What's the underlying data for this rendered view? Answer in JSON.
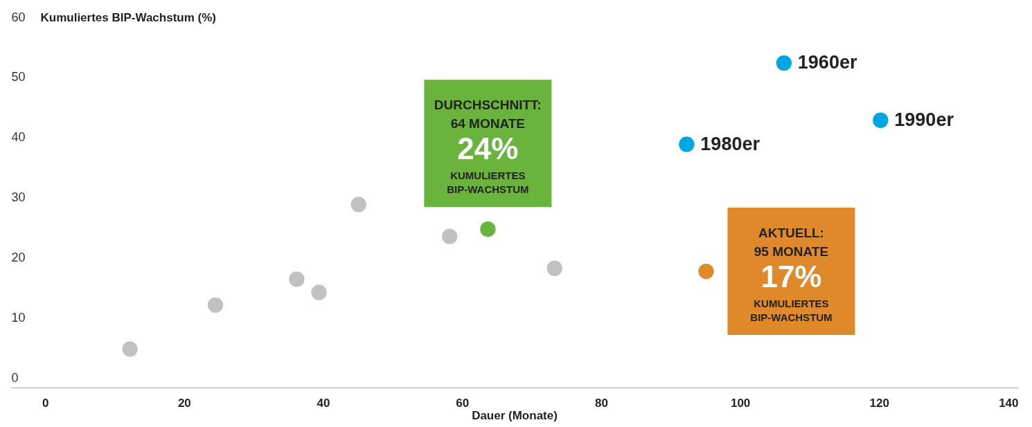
{
  "chart_data": {
    "type": "scatter",
    "xlabel": "Dauer (Monate)",
    "ylabel": "Kumuliertes BIP-Wachstum (%)",
    "xlim": [
      -5,
      140
    ],
    "xticks": [
      0,
      20,
      40,
      60,
      80,
      100,
      120,
      140
    ],
    "ylim": [
      -1.5,
      60
    ],
    "yticks": [
      0,
      10,
      20,
      30,
      40,
      50,
      60
    ],
    "marker": "circle",
    "series": [
      {
        "color": "#c1c1c1",
        "x": [
          12.2,
          24.5,
          36.2,
          39.4,
          45.1,
          58.2,
          73.3
        ],
        "values": [
          4.9,
          12.2,
          16.5,
          14.3,
          28.9,
          23.6,
          18.3
        ]
      },
      {
        "color": "#6ab43e",
        "x": [
          63.7
        ],
        "values": [
          24.8
        ]
      },
      {
        "color": "#e0892a",
        "x": [
          95.1
        ],
        "values": [
          17.8
        ]
      },
      {
        "color": "#00a6e2",
        "x": [
          92.3,
          106.3,
          120.2
        ],
        "values": [
          38.9,
          52.4,
          42.9
        ]
      }
    ],
    "annotations": [
      {
        "text": "DURCHSCHNITT:\n64 MONATE\n24%\nKUMULIERTES\nBIP-WACHSTUM",
        "x": 63.7,
        "y": 24.8
      },
      {
        "text": "AKTUELL:\n95 MONATE\n17%\nKUMULIERTES\nBIP-WACHSTUM",
        "x": 95.1,
        "y": 17.8
      },
      {
        "text": "1980er",
        "x": 92.3,
        "y": 38.9
      },
      {
        "text": "1960er",
        "x": 106.3,
        "y": 52.4
      },
      {
        "text": "1990er",
        "x": 120.2,
        "y": 42.9
      }
    ]
  }
}
